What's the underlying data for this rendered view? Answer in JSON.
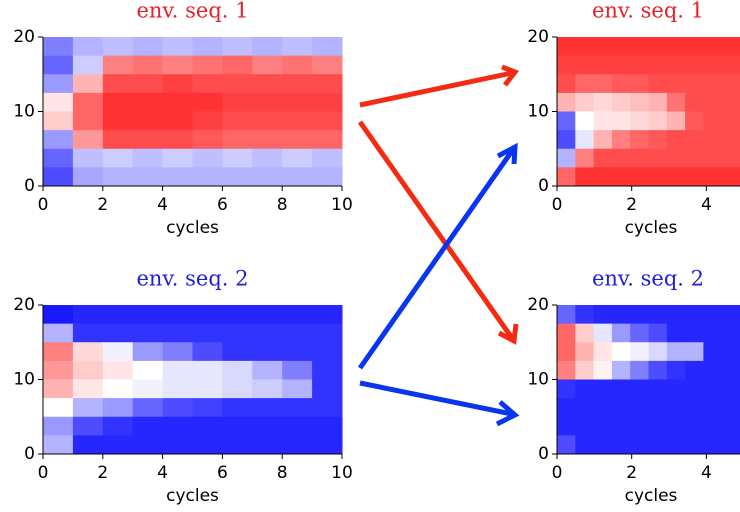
{
  "chart_data": [
    {
      "type": "heatmap",
      "title": "env. seq. 1",
      "title_color": "#e8202a",
      "xlabel": "cycles",
      "xlim": [
        0,
        10
      ],
      "ylim": [
        0,
        20
      ],
      "xticks": [
        0,
        2,
        4,
        6,
        8,
        10
      ],
      "yticks": [
        0,
        10,
        20
      ],
      "zlim": [
        -1,
        1
      ],
      "colors": [
        "#0000ff",
        "#ffffff",
        "#ff0000"
      ],
      "values": [
        [
          -0.5,
          -0.3,
          -0.25,
          -0.3,
          -0.25,
          -0.3,
          -0.25,
          -0.3,
          -0.25,
          -0.3
        ],
        [
          -0.6,
          -0.2,
          0.5,
          0.55,
          0.5,
          0.55,
          0.6,
          0.5,
          0.55,
          0.5
        ],
        [
          -0.4,
          0.3,
          0.7,
          0.7,
          0.75,
          0.7,
          0.7,
          0.7,
          0.7,
          0.7
        ],
        [
          0.1,
          0.6,
          0.8,
          0.8,
          0.8,
          0.8,
          0.75,
          0.75,
          0.75,
          0.75
        ],
        [
          0.2,
          0.6,
          0.8,
          0.8,
          0.8,
          0.75,
          0.7,
          0.7,
          0.7,
          0.7
        ],
        [
          -0.4,
          0.4,
          0.7,
          0.7,
          0.7,
          0.65,
          0.6,
          0.6,
          0.6,
          0.6
        ],
        [
          -0.6,
          -0.25,
          -0.2,
          -0.25,
          -0.2,
          -0.25,
          -0.2,
          -0.25,
          -0.2,
          -0.25
        ],
        [
          -0.7,
          -0.35,
          -0.3,
          -0.3,
          -0.3,
          -0.3,
          -0.3,
          -0.3,
          -0.3,
          -0.3
        ]
      ]
    },
    {
      "type": "heatmap",
      "title": "env. seq. 1",
      "title_color": "#e8202a",
      "xlabel": "cycles",
      "xlim": [
        0,
        4.9
      ],
      "ylim": [
        0,
        20
      ],
      "xticks": [
        0,
        2,
        4
      ],
      "yticks": [
        0,
        10,
        20
      ],
      "zlim": [
        -1,
        1
      ],
      "colors": [
        "#0000ff",
        "#ffffff",
        "#ff0000"
      ],
      "values": [
        [
          0.8,
          0.8,
          0.8,
          0.8,
          0.8,
          0.8,
          0.8,
          0.8,
          0.8,
          0.8
        ],
        [
          0.75,
          0.75,
          0.75,
          0.75,
          0.75,
          0.75,
          0.75,
          0.75,
          0.75,
          0.75
        ],
        [
          0.7,
          0.6,
          0.6,
          0.65,
          0.65,
          0.7,
          0.7,
          0.7,
          0.7,
          0.7
        ],
        [
          0.3,
          0.2,
          0.15,
          0.2,
          0.25,
          0.3,
          0.55,
          0.7,
          0.7,
          0.7
        ],
        [
          -0.6,
          0.0,
          0.1,
          0.1,
          0.15,
          0.2,
          0.3,
          0.65,
          0.7,
          0.7
        ],
        [
          -0.7,
          -0.1,
          0.3,
          0.5,
          0.6,
          0.65,
          0.7,
          0.7,
          0.7,
          0.7
        ],
        [
          -0.3,
          0.5,
          0.7,
          0.7,
          0.7,
          0.7,
          0.7,
          0.7,
          0.7,
          0.7
        ],
        [
          0.6,
          0.8,
          0.8,
          0.8,
          0.8,
          0.8,
          0.8,
          0.8,
          0.8,
          0.8
        ]
      ]
    },
    {
      "type": "heatmap",
      "title": "env. seq. 2",
      "title_color": "#1f1fd8",
      "xlabel": "cycles",
      "xlim": [
        0,
        10
      ],
      "ylim": [
        0,
        20
      ],
      "xticks": [
        0,
        2,
        4,
        6,
        8,
        10
      ],
      "yticks": [
        0,
        10,
        20
      ],
      "zlim": [
        -1,
        1
      ],
      "colors": [
        "#0000ff",
        "#ffffff",
        "#ff0000"
      ],
      "values": [
        [
          -0.9,
          -0.85,
          -0.85,
          -0.85,
          -0.85,
          -0.85,
          -0.85,
          -0.85,
          -0.85,
          -0.85
        ],
        [
          -0.3,
          -0.8,
          -0.8,
          -0.8,
          -0.8,
          -0.8,
          -0.8,
          -0.8,
          -0.8,
          -0.8
        ],
        [
          0.5,
          0.15,
          -0.05,
          -0.4,
          -0.5,
          -0.7,
          -0.8,
          -0.8,
          -0.8,
          -0.8
        ],
        [
          0.4,
          0.2,
          0.1,
          0.0,
          -0.1,
          -0.1,
          -0.15,
          -0.3,
          -0.5,
          -0.8
        ],
        [
          0.3,
          0.1,
          0.0,
          -0.05,
          -0.1,
          -0.1,
          -0.15,
          -0.2,
          -0.3,
          -0.8
        ],
        [
          0.0,
          -0.3,
          -0.4,
          -0.6,
          -0.7,
          -0.75,
          -0.8,
          -0.8,
          -0.8,
          -0.8
        ],
        [
          -0.4,
          -0.7,
          -0.8,
          -0.85,
          -0.85,
          -0.85,
          -0.85,
          -0.85,
          -0.85,
          -0.85
        ],
        [
          -0.3,
          -0.85,
          -0.85,
          -0.85,
          -0.85,
          -0.85,
          -0.85,
          -0.85,
          -0.85,
          -0.85
        ]
      ]
    },
    {
      "type": "heatmap",
      "title": "env. seq. 2",
      "title_color": "#1f1fd8",
      "xlabel": "cycles",
      "xlim": [
        0,
        4.9
      ],
      "ylim": [
        0,
        20
      ],
      "xticks": [
        0,
        2,
        4
      ],
      "yticks": [
        0,
        10,
        20
      ],
      "zlim": [
        -1,
        1
      ],
      "colors": [
        "#0000ff",
        "#ffffff",
        "#ff0000"
      ],
      "values": [
        [
          -0.6,
          -0.8,
          -0.85,
          -0.85,
          -0.85,
          -0.85,
          -0.85,
          -0.85,
          -0.85,
          -0.85
        ],
        [
          0.6,
          0.2,
          -0.1,
          -0.4,
          -0.6,
          -0.7,
          -0.85,
          -0.85,
          -0.85,
          -0.85
        ],
        [
          0.6,
          0.3,
          0.1,
          0.0,
          -0.05,
          -0.15,
          -0.3,
          -0.3,
          -0.85,
          -0.85
        ],
        [
          0.5,
          0.2,
          0.05,
          -0.3,
          -0.5,
          -0.7,
          -0.8,
          -0.85,
          -0.85,
          -0.85
        ],
        [
          -0.8,
          -0.85,
          -0.85,
          -0.85,
          -0.85,
          -0.85,
          -0.85,
          -0.85,
          -0.85,
          -0.85
        ],
        [
          -0.85,
          -0.85,
          -0.85,
          -0.85,
          -0.85,
          -0.85,
          -0.85,
          -0.85,
          -0.85,
          -0.85
        ],
        [
          -0.85,
          -0.85,
          -0.85,
          -0.85,
          -0.85,
          -0.85,
          -0.85,
          -0.85,
          -0.85,
          -0.85
        ],
        [
          -0.7,
          -0.85,
          -0.85,
          -0.85,
          -0.85,
          -0.85,
          -0.85,
          -0.85,
          -0.85,
          -0.85
        ]
      ]
    }
  ]
}
